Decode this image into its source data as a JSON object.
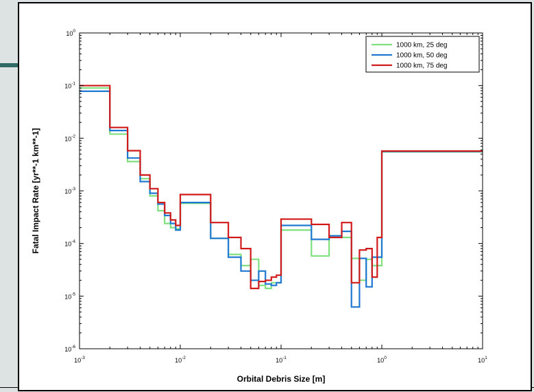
{
  "colors": {
    "background": "#dde3e3",
    "accent_bar": "#2f6a66",
    "series_green": "#7ee07e",
    "series_blue": "#1f78d1",
    "series_red": "#d11a1a"
  },
  "chart_data": {
    "type": "line",
    "step": true,
    "xscale": "log",
    "yscale": "log",
    "xlim": [
      0.001,
      10
    ],
    "ylim": [
      1e-06,
      1
    ],
    "xlabel": "Orbital Debris Size [m]",
    "ylabel": "Fatal Impact Rate [yr**-1 km**-1]",
    "grid": false,
    "legend_position": "top-right",
    "x_ticks": [
      {
        "base": "10",
        "exp": "-3"
      },
      {
        "base": "10",
        "exp": "-2"
      },
      {
        "base": "10",
        "exp": "-1"
      },
      {
        "base": "10",
        "exp": "0"
      },
      {
        "base": "10",
        "exp": "1"
      }
    ],
    "y_ticks": [
      {
        "base": "10",
        "exp": "-6"
      },
      {
        "base": "10",
        "exp": "-5"
      },
      {
        "base": "10",
        "exp": "-4"
      },
      {
        "base": "10",
        "exp": "-3"
      },
      {
        "base": "10",
        "exp": "-2"
      },
      {
        "base": "10",
        "exp": "-1"
      },
      {
        "base": "10",
        "exp": "0"
      }
    ],
    "series": [
      {
        "name": "1000 km, 25 deg",
        "color": "#7ee07e",
        "x": [
          0.001,
          0.002,
          0.003,
          0.004,
          0.005,
          0.006,
          0.007,
          0.008,
          0.009,
          0.01,
          0.02,
          0.03,
          0.04,
          0.05,
          0.06,
          0.07,
          0.08,
          0.09,
          0.1,
          0.2,
          0.3,
          0.4,
          0.5,
          0.6,
          0.7,
          0.8,
          0.9,
          1.0,
          10
        ],
        "y": [
          0.09,
          0.012,
          0.0036,
          0.0017,
          0.0008,
          0.00042,
          0.00024,
          0.0002,
          0.00019,
          0.00058,
          0.000125,
          6.2e-05,
          3.8e-05,
          5e-05,
          1.6e-05,
          1.4e-05,
          1.8e-05,
          1.8e-05,
          0.00018,
          5.8e-05,
          0.00014,
          0.00013,
          5.2e-05,
          2e-05,
          5e-05,
          3.8e-05,
          3.8e-05,
          0.0055,
          0.0055
        ]
      },
      {
        "name": "1000 km, 50 deg",
        "color": "#1f78d1",
        "x": [
          0.001,
          0.002,
          0.003,
          0.004,
          0.005,
          0.006,
          0.007,
          0.008,
          0.009,
          0.01,
          0.02,
          0.03,
          0.04,
          0.05,
          0.06,
          0.07,
          0.08,
          0.09,
          0.1,
          0.2,
          0.3,
          0.4,
          0.5,
          0.6,
          0.7,
          0.8,
          0.9,
          1.0,
          10
        ],
        "y": [
          0.078,
          0.014,
          0.0042,
          0.0015,
          0.0009,
          0.00056,
          0.00034,
          0.00024,
          0.00018,
          0.0006,
          0.000125,
          5.5e-05,
          3e-05,
          2e-05,
          3e-05,
          1.7e-05,
          1.6e-05,
          1.8e-05,
          0.00022,
          0.00012,
          0.00014,
          0.00017,
          6.2e-06,
          5.2e-05,
          1.5e-05,
          5.5e-05,
          5.5e-05,
          0.0056,
          0.0056
        ]
      },
      {
        "name": "1000 km, 75 deg",
        "color": "#d11a1a",
        "x": [
          0.001,
          0.002,
          0.003,
          0.004,
          0.005,
          0.006,
          0.007,
          0.008,
          0.009,
          0.01,
          0.02,
          0.03,
          0.04,
          0.05,
          0.06,
          0.07,
          0.08,
          0.09,
          0.1,
          0.2,
          0.3,
          0.4,
          0.5,
          0.6,
          0.7,
          0.8,
          0.9,
          1.0,
          10
        ],
        "y": [
          0.1,
          0.016,
          0.0058,
          0.002,
          0.0011,
          0.0006,
          0.00038,
          0.00028,
          0.00022,
          0.00085,
          0.00025,
          0.00013,
          8e-05,
          1.4e-05,
          1.9e-05,
          2e-05,
          2.3e-05,
          2.5e-05,
          0.00029,
          0.00023,
          0.00013,
          0.00025,
          1.8e-05,
          7.5e-05,
          8e-05,
          2.3e-05,
          0.00013,
          0.0057,
          0.0057
        ]
      }
    ]
  }
}
